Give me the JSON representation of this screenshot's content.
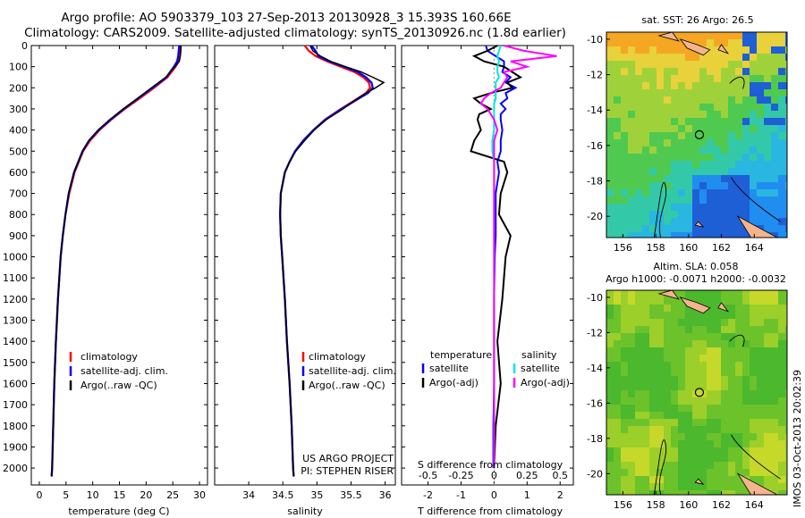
{
  "header": {
    "title_line1": "Argo profile: AO 5903379_103 27-Sep-2013 20130928_3 15.393S 160.66E",
    "title_line2": "Climatology: CARS2009. Satellite-adjusted climatology: synTS_20130926.nc (1.8d earlier)"
  },
  "colors": {
    "climatology": "#ff0000",
    "satellite": "#0000ff",
    "argo": "#000000",
    "argo_s": "#ff00ff",
    "sat_s": "#00e5e5",
    "coast": "#f4b48c"
  },
  "chart_data": [
    {
      "type": "line",
      "name": "temperature",
      "xlabel": "temperature (deg C)",
      "ylabel": "",
      "xlim": [
        -1.5,
        31.5
      ],
      "ylim": [
        2080,
        0
      ],
      "xticks": [
        "0",
        "5",
        "10",
        "15",
        "20",
        "25",
        "30"
      ],
      "xtick_values": [
        0,
        5,
        10,
        15,
        20,
        25,
        30
      ],
      "yticks": [
        "0",
        "100",
        "200",
        "300",
        "400",
        "500",
        "600",
        "700",
        "800",
        "900",
        "1000",
        "1100",
        "1200",
        "1300",
        "1400",
        "1500",
        "1600",
        "1700",
        "1800",
        "1900",
        "2000"
      ],
      "ytick_values": [
        0,
        100,
        200,
        300,
        400,
        500,
        600,
        700,
        800,
        900,
        1000,
        1100,
        1200,
        1300,
        1400,
        1500,
        1600,
        1700,
        1800,
        1900,
        2000
      ],
      "depth": [
        0,
        25,
        50,
        75,
        100,
        150,
        200,
        250,
        300,
        350,
        400,
        450,
        500,
        600,
        700,
        800,
        900,
        1000,
        1200,
        1400,
        1600,
        1800,
        2000,
        2040
      ],
      "series": [
        {
          "name": "climatology",
          "values": [
            26.5,
            26.4,
            26.3,
            26.1,
            25.5,
            24.0,
            21.5,
            18.8,
            16.0,
            13.5,
            11.3,
            9.5,
            8.2,
            6.6,
            5.6,
            4.9,
            4.4,
            4.0,
            3.5,
            3.1,
            2.8,
            2.6,
            2.4,
            2.3
          ]
        },
        {
          "name": "satellite-adj. clim.",
          "values": [
            26.2,
            26.1,
            26.0,
            25.8,
            25.2,
            23.8,
            21.2,
            18.5,
            15.8,
            13.4,
            11.1,
            9.3,
            8.1,
            6.5,
            5.5,
            4.9,
            4.4,
            4.0,
            3.5,
            3.1,
            2.8,
            2.6,
            2.4,
            2.3
          ]
        },
        {
          "name": "Argo(..raw -QC)",
          "values": [
            26.5,
            26.5,
            26.4,
            26.2,
            25.4,
            23.7,
            21.0,
            18.4,
            15.7,
            13.2,
            11.0,
            9.3,
            8.1,
            6.5,
            5.5,
            4.9,
            4.4,
            4.0,
            3.5,
            3.1,
            2.8,
            2.6,
            2.4,
            2.3
          ]
        }
      ],
      "legend": [
        "climatology",
        "satellite-adj. clim.",
        "Argo(..raw -QC)"
      ]
    },
    {
      "type": "line",
      "name": "salinity",
      "xlabel": "salinity",
      "ylabel": "",
      "xlim": [
        33.5,
        36.15
      ],
      "ylim": [
        2080,
        0
      ],
      "xticks": [
        "34",
        "34.5",
        "35",
        "35.5",
        "36"
      ],
      "xtick_values": [
        34,
        34.5,
        35,
        35.5,
        36
      ],
      "depth": [
        0,
        25,
        50,
        75,
        100,
        125,
        150,
        175,
        200,
        225,
        250,
        300,
        350,
        400,
        450,
        500,
        550,
        600,
        700,
        800,
        900,
        1000,
        1200,
        1400,
        1600,
        1800,
        2000,
        2040
      ],
      "series": [
        {
          "name": "climatology",
          "values": [
            34.82,
            34.88,
            34.98,
            35.15,
            35.35,
            35.55,
            35.68,
            35.76,
            35.78,
            35.72,
            35.6,
            35.35,
            35.12,
            34.95,
            34.8,
            34.68,
            34.6,
            34.53,
            34.47,
            34.46,
            34.47,
            34.49,
            34.53,
            34.56,
            34.6,
            34.63,
            34.65,
            34.66
          ]
        },
        {
          "name": "satellite-adj. clim.",
          "values": [
            34.92,
            34.98,
            35.02,
            35.18,
            35.4,
            35.6,
            35.72,
            35.8,
            35.82,
            35.75,
            35.62,
            35.36,
            35.13,
            34.95,
            34.8,
            34.68,
            34.6,
            34.53,
            34.47,
            34.46,
            34.47,
            34.49,
            34.53,
            34.56,
            34.6,
            34.63,
            34.65,
            34.66
          ]
        },
        {
          "name": "Argo(..raw -QC)",
          "values": [
            34.9,
            34.94,
            35.05,
            35.2,
            35.42,
            35.65,
            35.82,
            35.98,
            35.86,
            35.72,
            35.6,
            35.38,
            35.14,
            34.96,
            34.82,
            34.69,
            34.6,
            34.53,
            34.47,
            34.46,
            34.47,
            34.49,
            34.53,
            34.56,
            34.6,
            34.63,
            34.65,
            34.66
          ]
        }
      ],
      "legend": [
        "climatology",
        "satellite-adj. clim.",
        "Argo(..raw -QC)"
      ],
      "annotations": [
        "US ARGO PROJECT",
        "PI: STEPHEN RISER"
      ]
    },
    {
      "type": "line",
      "name": "difference",
      "xlabel_top": "S difference from climatology",
      "xlabel": "T difference from climatology",
      "xlim": [
        -2.8,
        2.4
      ],
      "ylim": [
        2080,
        0
      ],
      "xticks": [
        "-2",
        "-1",
        "0",
        "1",
        "2"
      ],
      "xtick_values": [
        -2,
        -1,
        0,
        1,
        2
      ],
      "sticks": [
        "-0.5",
        "-0.25",
        "0",
        "0.25",
        "0.5"
      ],
      "stick_values": [
        -2,
        -1,
        0,
        1,
        2
      ],
      "depth": [
        0,
        25,
        50,
        75,
        100,
        125,
        150,
        175,
        200,
        225,
        250,
        275,
        300,
        325,
        350,
        400,
        450,
        500,
        550,
        600,
        700,
        800,
        900,
        1000,
        1200,
        1400,
        1600,
        1800,
        2000
      ],
      "series": [
        {
          "name": "T satellite",
          "values": [
            -0.25,
            -0.2,
            0.05,
            0.3,
            0.3,
            0.25,
            0.5,
            0.35,
            0.65,
            0.35,
            0.4,
            0.2,
            0.35,
            0.2,
            0.2,
            0.25,
            0.2,
            0.2,
            0.1,
            0.15,
            0.05,
            0.05,
            0.05,
            0.02,
            0.0,
            0.0,
            0.0,
            -0.02,
            -0.02
          ]
        },
        {
          "name": "T Argo(-adj)",
          "values": [
            0.1,
            -0.2,
            -0.6,
            -0.3,
            0.3,
            0.55,
            0.8,
            0.4,
            0.55,
            -0.1,
            -0.6,
            -0.4,
            -0.1,
            -0.45,
            -0.5,
            -0.4,
            -0.6,
            -0.7,
            0.3,
            0.4,
            0.2,
            0.15,
            0.5,
            0.35,
            0.25,
            0.1,
            0.2,
            0.05,
            0.0
          ]
        },
        {
          "name": "S satellite",
          "values": [
            0.2,
            0.15,
            0.1,
            0.15,
            0.1,
            0.1,
            0.15,
            0.05,
            0.05,
            0.05,
            0.05,
            0.0,
            0.0,
            0.0,
            0.0,
            0.0,
            -0.05,
            -0.05,
            0.0,
            0.0,
            0.0,
            0.0,
            0.0,
            0.0,
            0.0,
            0.0,
            0.0,
            0.0,
            0.0
          ]
        },
        {
          "name": "S Argo(-adj)",
          "values": [
            0.3,
            0.9,
            1.9,
            0.5,
            1.0,
            0.3,
            0.4,
            0.3,
            0.2,
            -0.1,
            -0.3,
            -0.4,
            -0.2,
            -0.1,
            0.0,
            0.1,
            0.0,
            0.0,
            0.0,
            0.0,
            0.0,
            0.0,
            0.0,
            0.0,
            0.0,
            0.0,
            0.0,
            0.0,
            0.0
          ]
        }
      ],
      "legend_left_title": "temperature",
      "legend_right_title": "salinity",
      "legend_left": [
        "satellite",
        "Argo(-adj)"
      ],
      "legend_right": [
        "satellite",
        "Argo(-adj)"
      ]
    },
    {
      "type": "heatmap",
      "name": "sst_map",
      "title": "sat. SST: 26 Argo: 26.5",
      "xticks": [
        "156",
        "158",
        "160",
        "162",
        "164"
      ],
      "xtick_values": [
        156,
        158,
        160,
        162,
        164
      ],
      "yticks": [
        "-10",
        "-12",
        "-14",
        "-16",
        "-18",
        "-20"
      ],
      "ytick_values": [
        -10,
        -12,
        -14,
        -16,
        -18,
        -20
      ],
      "xlim": [
        155,
        166
      ],
      "ylim": [
        -21.2,
        -9.6
      ],
      "float_position": {
        "lon": 160.66,
        "lat": -15.393
      }
    },
    {
      "type": "heatmap",
      "name": "sla_map",
      "title_line1": "Altim. SLA: 0.058",
      "title_line2": "Argo h1000: -0.0071 h2000: -0.0032",
      "xticks": [
        "156",
        "158",
        "160",
        "162",
        "164"
      ],
      "xtick_values": [
        156,
        158,
        160,
        162,
        164
      ],
      "yticks": [
        "-10",
        "-12",
        "-14",
        "-16",
        "-18",
        "-20"
      ],
      "ytick_values": [
        -10,
        -12,
        -14,
        -16,
        -18,
        -20
      ],
      "xlim": [
        155,
        166
      ],
      "ylim": [
        -21.2,
        -9.6
      ],
      "float_position": {
        "lon": 160.66,
        "lat": -15.393
      }
    }
  ],
  "footer": {
    "stamp": "IMOS 03-Oct-2013 20:02:39"
  }
}
